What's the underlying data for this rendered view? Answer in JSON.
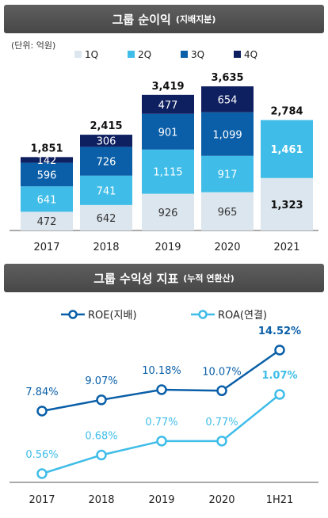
{
  "chart_data": [
    {
      "type": "bar",
      "title": "그룹 순이익",
      "subtitle": "(지배지분)",
      "unit_label": "(단위: 억원)",
      "categories": [
        "2017",
        "2018",
        "2019",
        "2020",
        "2021"
      ],
      "series": [
        {
          "name": "1Q",
          "color": "#dce6ee",
          "values": [
            472,
            642,
            926,
            965,
            1323
          ],
          "labels": [
            "472",
            "642",
            "926",
            "965",
            "1,323"
          ]
        },
        {
          "name": "2Q",
          "color": "#3fbde8",
          "values": [
            641,
            741,
            1115,
            917,
            1461
          ],
          "labels": [
            "641",
            "741",
            "1,115",
            "917",
            "1,461"
          ]
        },
        {
          "name": "3Q",
          "color": "#0a5fa8",
          "values": [
            596,
            726,
            901,
            1099,
            0
          ],
          "labels": [
            "596",
            "726",
            "901",
            "1,099",
            ""
          ]
        },
        {
          "name": "4Q",
          "color": "#0f2060",
          "values": [
            142,
            306,
            477,
            654,
            0
          ],
          "labels": [
            "142",
            "306",
            "477",
            "654",
            ""
          ]
        }
      ],
      "totals": [
        "1,851",
        "2,415",
        "3,419",
        "3,635",
        "2,784"
      ],
      "ylim": [
        0,
        3635
      ],
      "legend": "top"
    },
    {
      "type": "line",
      "title": "그룹 수익성 지표",
      "subtitle": "(누적 연환산)",
      "categories": [
        "2017",
        "2018",
        "2019",
        "2020",
        "1H21"
      ],
      "series": [
        {
          "name": "ROE(지배)",
          "color": "#0a5fa8",
          "values": [
            7.84,
            9.07,
            10.18,
            10.07,
            14.52
          ],
          "labels": [
            "7.84%",
            "9.07%",
            "10.18%",
            "10.07%",
            "14.52%"
          ]
        },
        {
          "name": "ROA(연결)",
          "color": "#3fbde8",
          "values": [
            0.56,
            0.68,
            0.77,
            0.77,
            1.07
          ],
          "labels": [
            "0.56%",
            "0.68%",
            "0.77%",
            "0.77%",
            "1.07%"
          ]
        }
      ],
      "legend": "top"
    }
  ]
}
